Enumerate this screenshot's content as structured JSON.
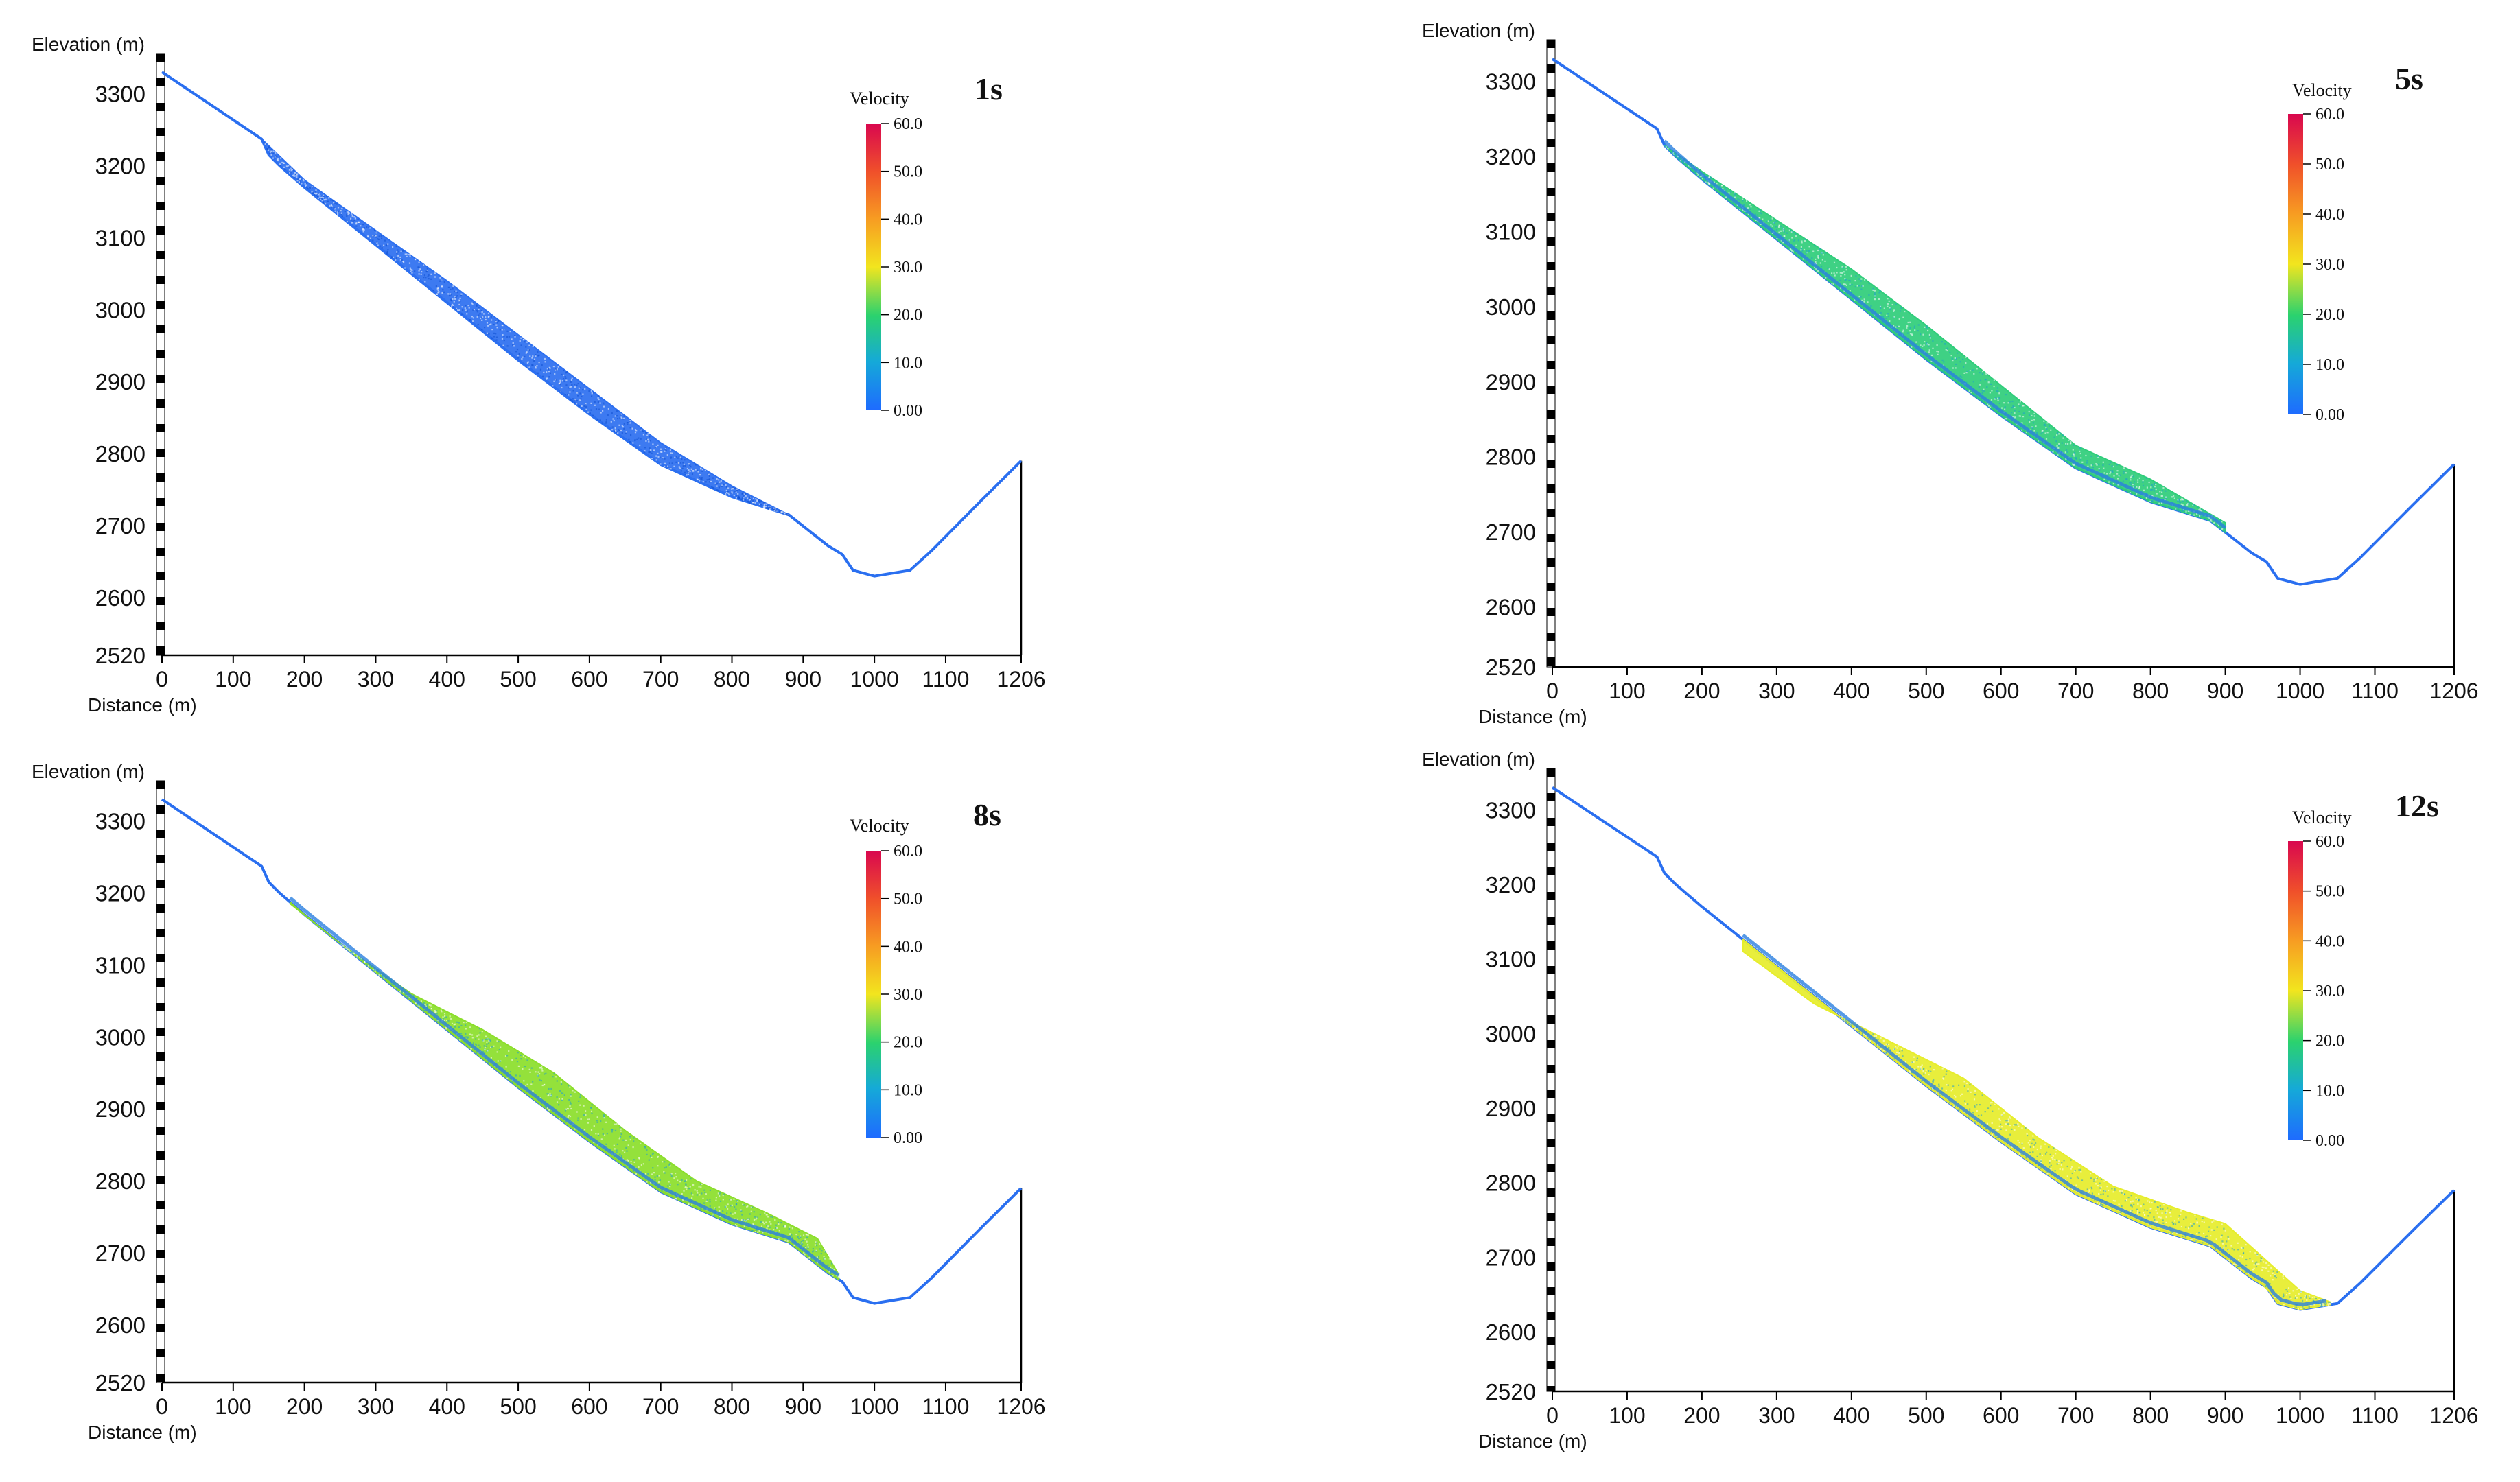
{
  "figure": {
    "x_axis_label": "Distance (m)",
    "y_axis_label": "Elevation (m)",
    "colorbar_title": "Velocity"
  },
  "chart_data": [
    {
      "type": "scatter",
      "title": "1s",
      "xlabel": "Distance (m)",
      "ylabel": "Elevation (m)",
      "xlim": [
        0,
        1206
      ],
      "ylim": [
        2520,
        3350
      ],
      "x_ticks": [
        0,
        100,
        200,
        300,
        400,
        500,
        600,
        700,
        800,
        900,
        1000,
        1100,
        1206
      ],
      "y_ticks": [
        2520,
        2600,
        2700,
        2800,
        2900,
        3000,
        3100,
        3200,
        3300
      ],
      "colorbar": {
        "label": "Velocity",
        "ticks": [
          "0.00",
          "10.0",
          "20.0",
          "30.0",
          "40.0",
          "50.0",
          "60.0"
        ],
        "range": [
          0,
          60
        ]
      },
      "terrain_profile": {
        "x": [
          0,
          140,
          150,
          165,
          200,
          300,
          400,
          500,
          600,
          700,
          800,
          880,
          935,
          955,
          970,
          1000,
          1050,
          1080,
          1150,
          1206
        ],
        "y": [
          3330,
          3237,
          3215,
          3200,
          3170,
          3090,
          3010,
          2930,
          2855,
          2785,
          2740,
          2715,
          2672,
          2660,
          2638,
          2630,
          2638,
          2665,
          2735,
          2790
        ]
      },
      "debris_mass": {
        "x_start": 140,
        "x_end": 880,
        "top": [
          [
            140,
            3237
          ],
          [
            200,
            3180
          ],
          [
            300,
            3110
          ],
          [
            400,
            3040
          ],
          [
            500,
            2965
          ],
          [
            600,
            2890
          ],
          [
            700,
            2815
          ],
          [
            800,
            2755
          ],
          [
            880,
            2715
          ]
        ],
        "velocity_m_s": 2,
        "color": "#2c6ff0"
      }
    },
    {
      "type": "scatter",
      "title": "5s",
      "xlabel": "Distance (m)",
      "ylabel": "Elevation (m)",
      "xlim": [
        0,
        1206
      ],
      "ylim": [
        2520,
        3350
      ],
      "x_ticks": [
        0,
        100,
        200,
        300,
        400,
        500,
        600,
        700,
        800,
        900,
        1000,
        1100,
        1206
      ],
      "y_ticks": [
        2520,
        2600,
        2700,
        2800,
        2900,
        3000,
        3100,
        3200,
        3300
      ],
      "colorbar": {
        "label": "Velocity",
        "ticks": [
          "0.00",
          "10.0",
          "20.0",
          "30.0",
          "40.0",
          "50.0",
          "60.0"
        ],
        "range": [
          0,
          60
        ]
      },
      "terrain_profile": {
        "x": [
          0,
          140,
          150,
          165,
          200,
          300,
          400,
          500,
          600,
          700,
          800,
          880,
          935,
          955,
          970,
          1000,
          1050,
          1080,
          1150,
          1206
        ],
        "y": [
          3330,
          3237,
          3215,
          3200,
          3170,
          3090,
          3010,
          2930,
          2855,
          2785,
          2740,
          2715,
          2672,
          2660,
          2638,
          2630,
          2638,
          2665,
          2735,
          2790
        ]
      },
      "debris_mass": {
        "x_start": 150,
        "x_end": 900,
        "top": [
          [
            150,
            3215
          ],
          [
            200,
            3180
          ],
          [
            300,
            3115
          ],
          [
            400,
            3050
          ],
          [
            500,
            2975
          ],
          [
            600,
            2895
          ],
          [
            700,
            2815
          ],
          [
            800,
            2770
          ],
          [
            900,
            2712
          ]
        ],
        "velocity_m_s": 17,
        "color": "#2fcd7a"
      }
    },
    {
      "type": "scatter",
      "title": "8s",
      "xlabel": "Distance (m)",
      "ylabel": "Elevation (m)",
      "xlim": [
        0,
        1206
      ],
      "ylim": [
        2520,
        3350
      ],
      "x_ticks": [
        0,
        100,
        200,
        300,
        400,
        500,
        600,
        700,
        800,
        900,
        1000,
        1100,
        1206
      ],
      "y_ticks": [
        2520,
        2600,
        2700,
        2800,
        2900,
        3000,
        3100,
        3200,
        3300
      ],
      "colorbar": {
        "label": "Velocity",
        "ticks": [
          "0.00",
          "10.0",
          "20.0",
          "30.0",
          "40.0",
          "50.0",
          "60.0"
        ],
        "range": [
          0,
          60
        ]
      },
      "terrain_profile": {
        "x": [
          0,
          140,
          150,
          165,
          200,
          300,
          400,
          500,
          600,
          700,
          800,
          880,
          935,
          955,
          970,
          1000,
          1050,
          1080,
          1150,
          1206
        ],
        "y": [
          3330,
          3237,
          3215,
          3200,
          3170,
          3090,
          3010,
          2930,
          2855,
          2785,
          2740,
          2715,
          2672,
          2660,
          2638,
          2630,
          2638,
          2665,
          2735,
          2790
        ]
      },
      "debris_mass": {
        "x_start": 180,
        "x_end": 950,
        "top": [
          [
            180,
            3185
          ],
          [
            250,
            3130
          ],
          [
            350,
            3060
          ],
          [
            450,
            3010
          ],
          [
            550,
            2950
          ],
          [
            650,
            2870
          ],
          [
            750,
            2800
          ],
          [
            850,
            2755
          ],
          [
            920,
            2720
          ],
          [
            950,
            2670
          ]
        ],
        "velocity_m_s": 25,
        "color": "#8bde2a"
      }
    },
    {
      "type": "scatter",
      "title": "12s",
      "xlabel": "Distance (m)",
      "ylabel": "Elevation (m)",
      "xlim": [
        0,
        1206
      ],
      "ylim": [
        2520,
        3350
      ],
      "x_ticks": [
        0,
        100,
        200,
        300,
        400,
        500,
        600,
        700,
        800,
        900,
        1000,
        1100,
        1206
      ],
      "y_ticks": [
        2520,
        2600,
        2700,
        2800,
        2900,
        3000,
        3100,
        3200,
        3300
      ],
      "colorbar": {
        "label": "Velocity",
        "ticks": [
          "0.00",
          "10.0",
          "20.0",
          "30.0",
          "40.0",
          "50.0",
          "60.0"
        ],
        "range": [
          0,
          60
        ]
      },
      "terrain_profile": {
        "x": [
          0,
          140,
          150,
          165,
          200,
          300,
          400,
          500,
          600,
          700,
          800,
          880,
          935,
          955,
          970,
          1000,
          1050,
          1080,
          1150,
          1206
        ],
        "y": [
          3330,
          3237,
          3215,
          3200,
          3170,
          3090,
          3010,
          2930,
          2855,
          2785,
          2740,
          2715,
          2672,
          2660,
          2638,
          2630,
          2638,
          2665,
          2735,
          2790
        ]
      },
      "debris_mass": {
        "x_start": 255,
        "x_end": 1040,
        "top": [
          [
            255,
            3110
          ],
          [
            350,
            3040
          ],
          [
            450,
            2990
          ],
          [
            550,
            2940
          ],
          [
            650,
            2860
          ],
          [
            750,
            2795
          ],
          [
            850,
            2760
          ],
          [
            900,
            2745
          ],
          [
            950,
            2700
          ],
          [
            1000,
            2655
          ],
          [
            1040,
            2640
          ]
        ],
        "velocity_m_s": 30,
        "color": "#e6ed2b"
      }
    }
  ]
}
